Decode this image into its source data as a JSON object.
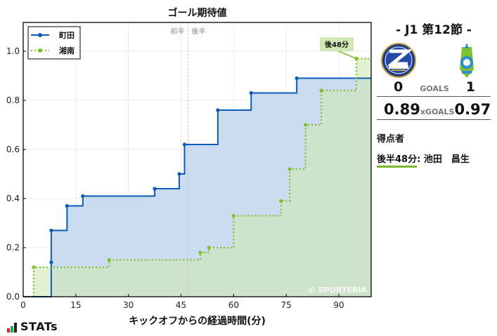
{
  "chart": {
    "title": "ゴール期待値",
    "xlabel": "キックオフからの経過時間(分)",
    "half_labels": {
      "first": "前半",
      "second": "後半"
    },
    "watermark": "© SPORTERIA",
    "annotation": "後48分"
  },
  "legend": [
    {
      "name": "町田",
      "color": "#0a5cb8",
      "style": "solid"
    },
    {
      "name": "湘南",
      "color": "#7cc12e",
      "style": "dotted"
    }
  ],
  "sidebar": {
    "round": "- J1 第12節 -",
    "home_logo": "zelvia-emblem-icon",
    "away_logo": "bellmare-emblem-icon",
    "goals": {
      "home": "0",
      "label": "GOALS",
      "away": "1"
    },
    "xgoals": {
      "home": "0.89",
      "label": "xGOALS",
      "away": "0.97"
    },
    "scorers_title": "得点者",
    "scorers": [
      {
        "time": "後半48分",
        "sep": ":",
        "name": " 池田　昌生"
      }
    ]
  },
  "footer": {
    "logo_text": "STATs"
  },
  "chart_data": {
    "type": "line",
    "step": true,
    "title": "ゴール期待値",
    "xlabel": "キックオフからの経過時間(分)",
    "ylabel": "",
    "xlim": [
      0,
      99
    ],
    "ylim": [
      0,
      1.12
    ],
    "xticks": [
      0,
      15,
      30,
      45,
      60,
      75,
      90
    ],
    "yticks": [
      0.0,
      0.2,
      0.4,
      0.6,
      0.8,
      1.0
    ],
    "grid": true,
    "legend_position": "upper left",
    "halftime_line_x": 47,
    "series": [
      {
        "name": "町田",
        "color": "#0a5cb8",
        "x": [
          0,
          8,
          8,
          12.5,
          17,
          37.5,
          44.5,
          46,
          55.5,
          65,
          78,
          99
        ],
        "y": [
          0,
          0.14,
          0.27,
          0.37,
          0.41,
          0.44,
          0.5,
          0.62,
          0.76,
          0.83,
          0.89,
          0.89
        ]
      },
      {
        "name": "湘南",
        "color": "#7cc12e",
        "x": [
          0,
          3,
          24.5,
          50.5,
          53,
          60,
          73.5,
          76,
          80.5,
          85,
          95,
          99
        ],
        "y": [
          0,
          0.12,
          0.15,
          0.18,
          0.2,
          0.33,
          0.39,
          0.52,
          0.7,
          0.84,
          0.97,
          0.97
        ]
      }
    ],
    "annotations": [
      {
        "text": "後48分",
        "x": 95,
        "y": 0.97
      }
    ]
  }
}
